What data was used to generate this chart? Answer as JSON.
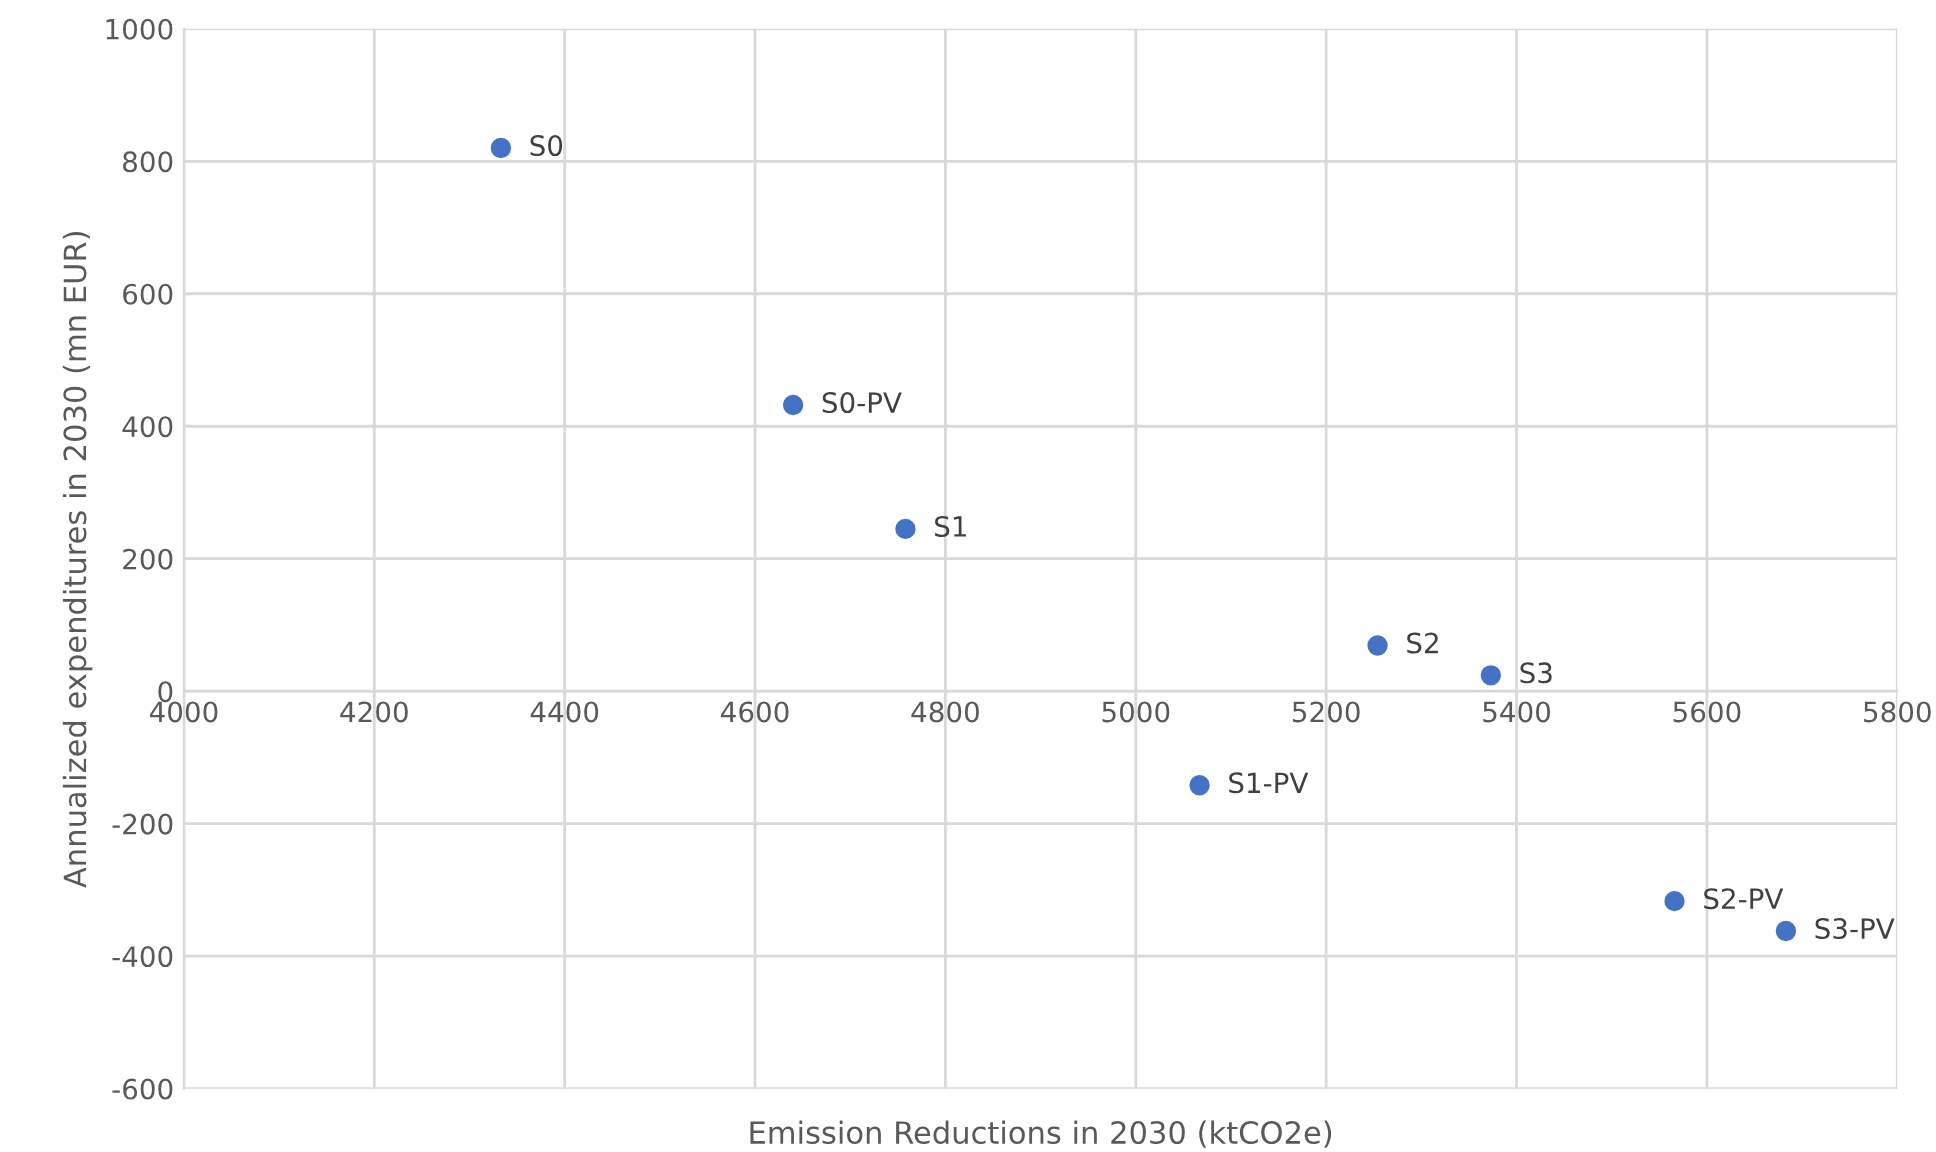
{
  "chart_data": {
    "type": "scatter",
    "xlabel": "Emission Reductions in 2030 (ktCO2e)",
    "ylabel": "Annualized expenditures in 2030 (mn EUR)",
    "series": [
      {
        "color": "#4472c4",
        "x": [
          4333,
          4640,
          4758,
          5254,
          5373,
          5067,
          5566,
          5683
        ],
        "values": [
          820,
          432,
          245,
          69,
          24,
          -142,
          -317,
          -362
        ]
      }
    ],
    "annotations": [
      {
        "text": "S0",
        "x": 4333,
        "y": 820
      },
      {
        "text": "S0-PV",
        "x": 4640,
        "y": 432
      },
      {
        "text": "S1",
        "x": 4758,
        "y": 245
      },
      {
        "text": "S2",
        "x": 5254,
        "y": 69
      },
      {
        "text": "S3",
        "x": 5373,
        "y": 24
      },
      {
        "text": "S1-PV",
        "x": 5067,
        "y": -142
      },
      {
        "text": "S2-PV",
        "x": 5566,
        "y": -317
      },
      {
        "text": "S3-PV",
        "x": 5683,
        "y": -362
      }
    ],
    "xlim": [
      4000,
      5800
    ],
    "xticks": [
      4000,
      4200,
      4400,
      4600,
      4800,
      5000,
      5200,
      5400,
      5600,
      5800
    ],
    "ylim": [
      -600,
      1000
    ],
    "yticks": [
      -600,
      -400,
      -200,
      0,
      200,
      400,
      600,
      800,
      1000
    ],
    "grid": true,
    "marker": "circle",
    "legend": false
  }
}
